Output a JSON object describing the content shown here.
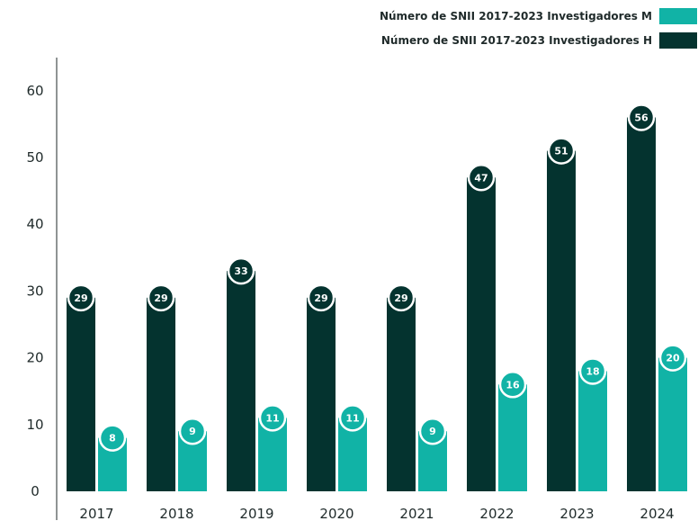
{
  "chart_data": {
    "type": "bar",
    "categories": [
      "2017",
      "2018",
      "2019",
      "2020",
      "2021",
      "2022",
      "2023",
      "2024"
    ],
    "series": [
      {
        "name": "Número de SNII 2017-2023 Investigadores H",
        "color": "#04332f",
        "values": [
          29,
          29,
          33,
          29,
          29,
          47,
          51,
          56
        ]
      },
      {
        "name": "Número de SNII 2017-2023 Investigadores M",
        "color": "#11b3a6",
        "values": [
          8,
          9,
          11,
          11,
          9,
          16,
          18,
          20
        ]
      }
    ],
    "legend": [
      {
        "name": "Número de SNII 2017-2023 Investigadores M",
        "color": "#11b3a6"
      },
      {
        "name": "Número de SNII 2017-2023 Investigadores H",
        "color": "#04332f"
      }
    ],
    "yticks": [
      "0",
      "10",
      "20",
      "30",
      "40",
      "50",
      "60"
    ],
    "ylim": [
      0,
      66
    ],
    "legend_position": "top-right",
    "grid": false
  }
}
